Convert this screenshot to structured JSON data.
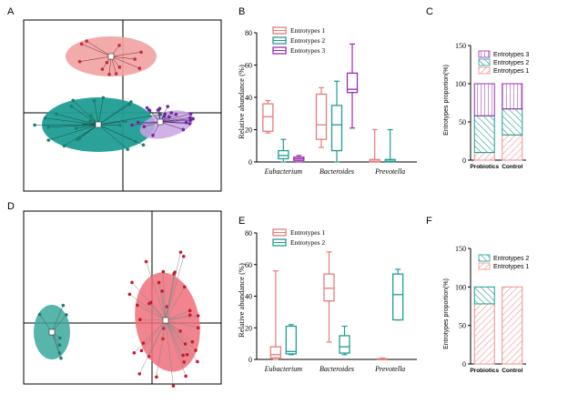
{
  "panels": {
    "A": "A",
    "B": "B",
    "C": "C",
    "D": "D",
    "E": "E",
    "F": "F"
  },
  "colors": {
    "red": "#e87b7b",
    "teal": "#1f9d94",
    "purple": "#9b2bb3"
  },
  "chart_data": [
    {
      "id": "A",
      "type": "scatter",
      "description_note": "",
      "clusters": [
        {
          "name": "Entrotypes 1",
          "color": "#ef8f8f"
        },
        {
          "name": "Entrotypes 2",
          "color": "#1f9d94"
        },
        {
          "name": "Entrotypes 3",
          "color": "#9b59b6"
        }
      ]
    },
    {
      "id": "B",
      "type": "box",
      "ylabel": "Relative abundance (%)",
      "ylim": [
        0,
        80
      ],
      "yticks": [
        "0",
        "20",
        "40",
        "60",
        "80"
      ],
      "categories": [
        "Eubacterium",
        "Bacteroides",
        "Prevotella"
      ],
      "series": [
        {
          "name": "Entrotypes 1",
          "color": "#e87b7b",
          "boxes": [
            {
              "min": 18,
              "q1": 19,
              "median": 28,
              "q3": 36,
              "max": 38
            },
            {
              "min": 9,
              "q1": 14,
              "median": 23,
              "q3": 42,
              "max": 46
            },
            {
              "min": 0,
              "q1": 0,
              "median": 0.5,
              "q3": 1.5,
              "max": 20
            }
          ]
        },
        {
          "name": "Entrotypes 2",
          "color": "#1f9d94",
          "boxes": [
            {
              "min": 0,
              "q1": 2,
              "median": 4,
              "q3": 7,
              "max": 14
            },
            {
              "min": 0,
              "q1": 7,
              "median": 23,
              "q3": 35,
              "max": 50
            },
            {
              "min": 0,
              "q1": 0,
              "median": 0.5,
              "q3": 1.5,
              "max": 20
            }
          ]
        },
        {
          "name": "Entrotypes 3",
          "color": "#9b2bb3",
          "boxes": [
            {
              "min": 0,
              "q1": 1,
              "median": 2,
              "q3": 3,
              "max": 4
            },
            {
              "min": 21,
              "q1": 43,
              "median": 45,
              "q3": 55,
              "max": 73
            },
            null
          ]
        }
      ]
    },
    {
      "id": "C",
      "type": "bar",
      "ylabel": "Entrotypes proportion(%)",
      "ylim": [
        0,
        150
      ],
      "yticks": [
        "0",
        "50",
        "100",
        "150"
      ],
      "categories": [
        "Probiotics",
        "Control"
      ],
      "series": [
        {
          "name": "Entrotypes 1",
          "color": "#ef8f8f",
          "values": [
            10,
            33
          ]
        },
        {
          "name": "Entrotypes 2",
          "color": "#1f9d94",
          "values": [
            48,
            34
          ]
        },
        {
          "name": "Entrotypes 3",
          "color": "#9b2bb3",
          "values": [
            42,
            33
          ]
        }
      ]
    },
    {
      "id": "D",
      "type": "scatter",
      "clusters": [
        {
          "name": "Entrotypes 1",
          "color": "#ef6f7a"
        },
        {
          "name": "Entrotypes 2",
          "color": "#3aa89c"
        }
      ]
    },
    {
      "id": "E",
      "type": "box",
      "ylabel": "Relative abundance (%)",
      "ylim": [
        0,
        80
      ],
      "yticks": [
        "0",
        "20",
        "40",
        "60",
        "80"
      ],
      "categories": [
        "Eubacterium",
        "Bacteroides",
        "Prevotella"
      ],
      "series": [
        {
          "name": "Entrotypes 1",
          "color": "#e87b7b",
          "boxes": [
            {
              "min": 0,
              "q1": 1,
              "median": 3,
              "q3": 8,
              "max": 56
            },
            {
              "min": 11,
              "q1": 37,
              "median": 45,
              "q3": 54,
              "max": 68
            },
            {
              "min": 0,
              "q1": 0,
              "median": 0,
              "q3": 0.4,
              "max": 0.8
            }
          ]
        },
        {
          "name": "Entrotypes 2",
          "color": "#1f9d94",
          "boxes": [
            {
              "min": 3,
              "q1": 3.5,
              "median": 5,
              "q3": 21,
              "max": 22
            },
            {
              "min": 3,
              "q1": 4,
              "median": 8,
              "q3": 15,
              "max": 21
            },
            {
              "min": 25,
              "q1": 25,
              "median": 41,
              "q3": 54,
              "max": 57
            }
          ]
        }
      ]
    },
    {
      "id": "F",
      "type": "bar",
      "ylabel": "Entrotypes proportion(%)",
      "ylim": [
        0,
        150
      ],
      "yticks": [
        "0",
        "50",
        "100",
        "150"
      ],
      "categories": [
        "Probiotics",
        "Control"
      ],
      "series": [
        {
          "name": "Entrotypes 1",
          "color": "#ef8f8f",
          "values": [
            78,
            100
          ]
        },
        {
          "name": "Entrotypes 2",
          "color": "#1f9d94",
          "values": [
            22,
            0
          ]
        }
      ]
    }
  ]
}
